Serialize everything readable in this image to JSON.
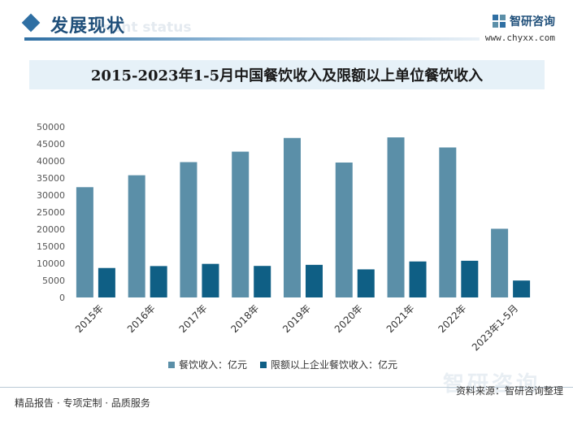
{
  "header": {
    "section_title": "发展现状",
    "section_subtitle": "ment status",
    "brand_name": "智研咨询",
    "brand_url": "www.chyxx.com"
  },
  "footer": {
    "tagline": "精品报告 · 专项定制 · 品质服务",
    "source": "资料来源：智研咨询整理",
    "watermark": "智研咨询"
  },
  "colors": {
    "series1": "#5b8fa8",
    "series2": "#0f5f85",
    "accent": "#2f6fa3"
  },
  "chart_data": {
    "type": "bar",
    "title": "2015-2023年1-5月中国餐饮收入及限额以上单位餐饮收入",
    "categories": [
      "2015年",
      "2016年",
      "2017年",
      "2018年",
      "2019年",
      "2020年",
      "2021年",
      "2022年",
      "2023年1-5月"
    ],
    "series": [
      {
        "name": "餐饮收入：亿元",
        "values": [
          32310,
          35799,
          39644,
          42716,
          46721,
          39527,
          46895,
          43941,
          20129
        ]
      },
      {
        "name": "限额以上企业餐饮收入：亿元",
        "values": [
          8634,
          9196,
          9839,
          9236,
          9556,
          8232,
          10544,
          10751,
          4960
        ]
      }
    ],
    "ylim": [
      0,
      50000
    ],
    "yticks": [
      0,
      5000,
      10000,
      15000,
      20000,
      25000,
      30000,
      35000,
      40000,
      45000,
      50000
    ],
    "grid": false,
    "legend": "bottom"
  }
}
